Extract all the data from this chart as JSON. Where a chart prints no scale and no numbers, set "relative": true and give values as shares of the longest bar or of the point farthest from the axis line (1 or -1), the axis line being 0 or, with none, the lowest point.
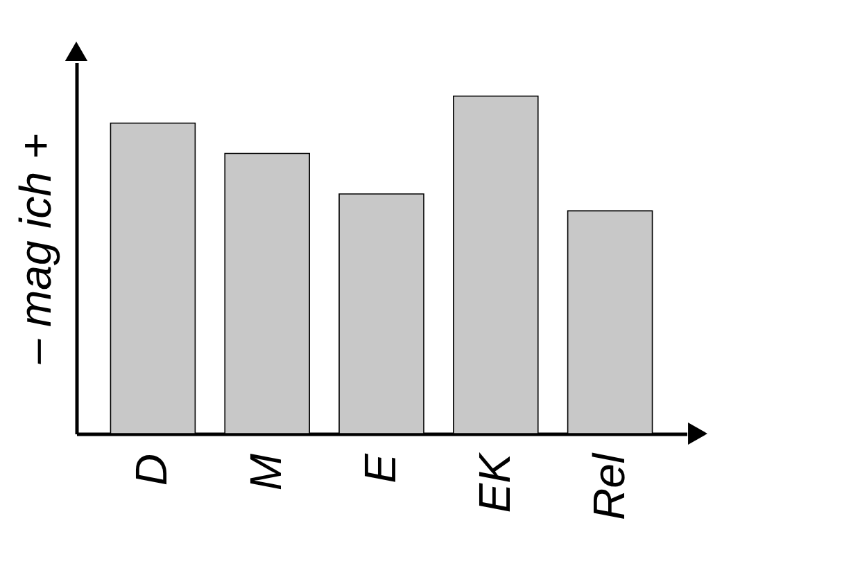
{
  "chart_data": {
    "type": "bar",
    "relative": true,
    "ylabel": "– mag ich +",
    "categories": [
      "D",
      "M",
      "E",
      "EK",
      "Rel"
    ],
    "values": [
      0.92,
      0.83,
      0.71,
      1,
      0.66
    ],
    "color": "#c8c8c8",
    "grid": false
  }
}
